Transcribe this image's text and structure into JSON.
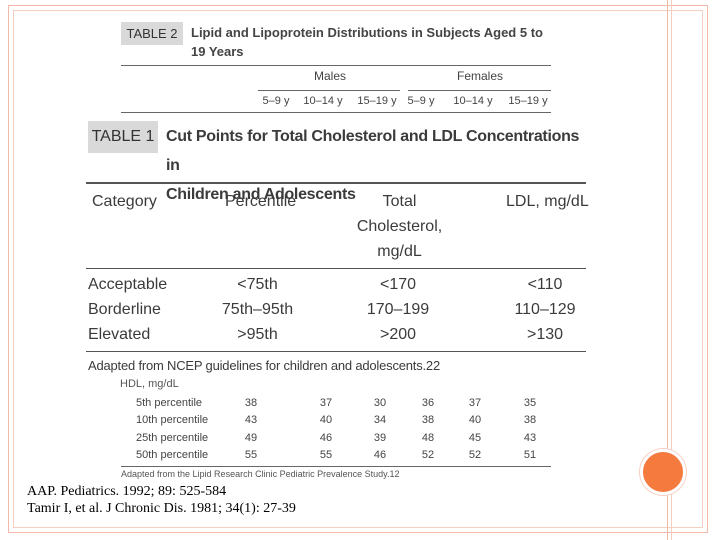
{
  "table2": {
    "label": "TABLE 2",
    "title": "Lipid and Lipoprotein Distributions in Subjects Aged 5 to 19 Years",
    "groups": [
      "Males",
      "Females"
    ],
    "ages": [
      "5–9 y",
      "10–14 y",
      "15–19 y",
      "5–9 y",
      "10–14 y",
      "15–19 y"
    ],
    "hdl_label": "HDL, mg/dL",
    "rows": [
      {
        "label": "5th percentile",
        "values": [
          "38",
          "37",
          "30",
          "36",
          "37",
          "35"
        ]
      },
      {
        "label": "10th percentile",
        "values": [
          "43",
          "40",
          "34",
          "38",
          "40",
          "38"
        ]
      },
      {
        "label": "25th percentile",
        "values": [
          "49",
          "46",
          "39",
          "48",
          "45",
          "43"
        ]
      },
      {
        "label": "50th percentile",
        "values": [
          "55",
          "55",
          "46",
          "52",
          "52",
          "51"
        ]
      }
    ],
    "source": "Adapted from the Lipid Research Clinic Pediatric Prevalence Study.12"
  },
  "table1": {
    "label": "TABLE 1",
    "title_line1": "Cut Points for Total Cholesterol and LDL Concentrations in",
    "title_line2": "Children and Adolescents",
    "headers": {
      "category": "Category",
      "percentile": "Percentile",
      "total_line1": "Total",
      "total_line2": "Cholesterol,",
      "total_line3": "mg/dL",
      "ldl": "LDL, mg/dL"
    },
    "rows": [
      {
        "category": "Acceptable",
        "percentile": "<75th",
        "total": "<170",
        "ldl": "<110"
      },
      {
        "category": "Borderline",
        "percentile": "75th–95th",
        "total": "170–199",
        "ldl": "110–129"
      },
      {
        "category": "Elevated",
        "percentile": ">95th",
        "total": ">200",
        "ldl": ">130"
      }
    ],
    "note": "Adapted from NCEP guidelines for children and adolescents.22"
  },
  "citations": [
    "AAP.  Pediatrics. 1992; 89: 525-584",
    "Tamir I, et al.  J Chronic Dis.  1981; 34(1): 27-39"
  ],
  "colors": {
    "accent": "#f47a3d",
    "frame": "#f2b9a8",
    "label_bg": "#d9d9d9"
  }
}
